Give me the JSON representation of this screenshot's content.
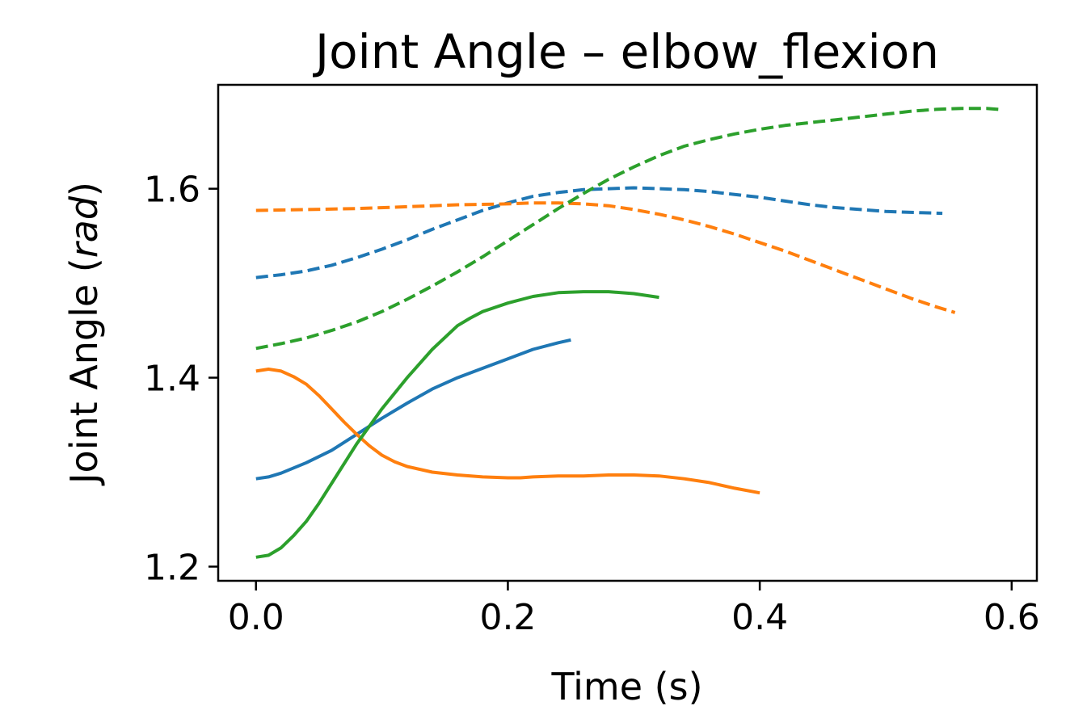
{
  "chart_data": {
    "type": "line",
    "title": "Joint Angle – elbow_flexion",
    "xlabel": "Time (s)",
    "ylabel": {
      "prefix": "Joint Angle (",
      "unit": "rad",
      "suffix": ")"
    },
    "xlim": [
      -0.03,
      0.62
    ],
    "ylim": [
      1.185,
      1.71
    ],
    "xticks": [
      0.0,
      0.2,
      0.4,
      0.6
    ],
    "xtick_labels": [
      "0.0",
      "0.2",
      "0.4",
      "0.6"
    ],
    "yticks": [
      1.2,
      1.4,
      1.6
    ],
    "ytick_labels": [
      "1.2",
      "1.4",
      "1.6"
    ],
    "grid": false,
    "series": [
      {
        "color": "#1f77b4",
        "style": "solid",
        "x": [
          0.0,
          0.01,
          0.02,
          0.04,
          0.06,
          0.08,
          0.1,
          0.12,
          0.14,
          0.16,
          0.18,
          0.2,
          0.22,
          0.24,
          0.25
        ],
        "y": [
          1.293,
          1.295,
          1.299,
          1.31,
          1.323,
          1.34,
          1.357,
          1.373,
          1.388,
          1.4,
          1.41,
          1.42,
          1.43,
          1.437,
          1.44
        ]
      },
      {
        "color": "#ff7f0e",
        "style": "solid",
        "x": [
          0.0,
          0.01,
          0.02,
          0.03,
          0.04,
          0.05,
          0.06,
          0.07,
          0.08,
          0.09,
          0.1,
          0.11,
          0.12,
          0.14,
          0.16,
          0.18,
          0.2,
          0.21,
          0.22,
          0.24,
          0.26,
          0.28,
          0.3,
          0.32,
          0.34,
          0.36,
          0.38,
          0.4
        ],
        "y": [
          1.407,
          1.409,
          1.407,
          1.401,
          1.393,
          1.381,
          1.367,
          1.353,
          1.34,
          1.328,
          1.318,
          1.311,
          1.306,
          1.3,
          1.297,
          1.295,
          1.294,
          1.294,
          1.295,
          1.296,
          1.296,
          1.297,
          1.297,
          1.296,
          1.293,
          1.289,
          1.283,
          1.278
        ]
      },
      {
        "color": "#2ca02c",
        "style": "solid",
        "x": [
          0.0,
          0.01,
          0.02,
          0.03,
          0.04,
          0.05,
          0.06,
          0.08,
          0.1,
          0.12,
          0.14,
          0.16,
          0.17,
          0.18,
          0.2,
          0.22,
          0.24,
          0.26,
          0.28,
          0.3,
          0.32
        ],
        "y": [
          1.21,
          1.212,
          1.22,
          1.233,
          1.248,
          1.267,
          1.288,
          1.33,
          1.367,
          1.4,
          1.43,
          1.455,
          1.463,
          1.47,
          1.479,
          1.486,
          1.49,
          1.491,
          1.491,
          1.489,
          1.485
        ]
      },
      {
        "color": "#1f77b4",
        "style": "dashed",
        "x": [
          0.0,
          0.02,
          0.04,
          0.06,
          0.08,
          0.1,
          0.12,
          0.14,
          0.16,
          0.18,
          0.2,
          0.22,
          0.24,
          0.26,
          0.28,
          0.3,
          0.32,
          0.34,
          0.36,
          0.38,
          0.4,
          0.42,
          0.44,
          0.46,
          0.48,
          0.5,
          0.52,
          0.545
        ],
        "y": [
          1.506,
          1.509,
          1.513,
          1.519,
          1.527,
          1.536,
          1.546,
          1.557,
          1.567,
          1.577,
          1.585,
          1.592,
          1.596,
          1.599,
          1.6,
          1.601,
          1.6,
          1.599,
          1.597,
          1.594,
          1.591,
          1.587,
          1.583,
          1.58,
          1.578,
          1.576,
          1.575,
          1.574
        ]
      },
      {
        "color": "#ff7f0e",
        "style": "dashed",
        "x": [
          0.0,
          0.04,
          0.08,
          0.12,
          0.16,
          0.2,
          0.22,
          0.24,
          0.26,
          0.28,
          0.3,
          0.32,
          0.34,
          0.36,
          0.38,
          0.4,
          0.42,
          0.44,
          0.46,
          0.48,
          0.5,
          0.52,
          0.54,
          0.555
        ],
        "y": [
          1.577,
          1.578,
          1.579,
          1.581,
          1.583,
          1.584,
          1.585,
          1.585,
          1.584,
          1.582,
          1.578,
          1.573,
          1.567,
          1.56,
          1.552,
          1.543,
          1.534,
          1.524,
          1.514,
          1.504,
          1.494,
          1.484,
          1.475,
          1.469
        ]
      },
      {
        "color": "#2ca02c",
        "style": "dashed",
        "x": [
          0.0,
          0.02,
          0.04,
          0.06,
          0.08,
          0.1,
          0.12,
          0.14,
          0.16,
          0.18,
          0.2,
          0.22,
          0.24,
          0.26,
          0.28,
          0.3,
          0.32,
          0.34,
          0.36,
          0.38,
          0.4,
          0.42,
          0.44,
          0.46,
          0.48,
          0.5,
          0.52,
          0.54,
          0.56,
          0.58,
          0.59
        ],
        "y": [
          1.431,
          1.436,
          1.442,
          1.45,
          1.459,
          1.47,
          1.483,
          1.497,
          1.512,
          1.528,
          1.545,
          1.562,
          1.579,
          1.595,
          1.61,
          1.623,
          1.635,
          1.645,
          1.652,
          1.658,
          1.663,
          1.667,
          1.67,
          1.673,
          1.676,
          1.679,
          1.682,
          1.684,
          1.685,
          1.685,
          1.684
        ]
      }
    ]
  }
}
